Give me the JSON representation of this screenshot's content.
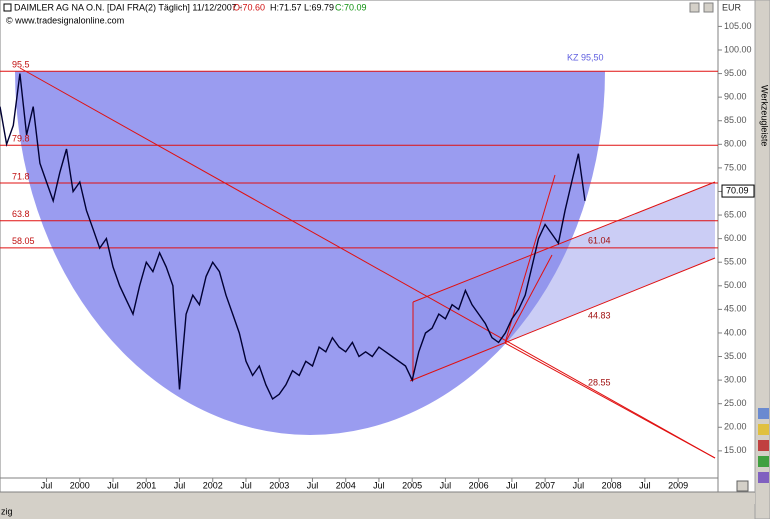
{
  "chart_data": {
    "type": "line",
    "title": "DAIMLER AG NA O.N. [DAI FRA(2)  Täglich] 11/12/2007 -",
    "quote_open": "O:70.60",
    "quote_high_low": "H:71.57 L:69.79",
    "quote_close": "C:70.09",
    "subtitle": "© www.tradesignalonline.com",
    "y_unit": "EUR",
    "last_price": 70.09,
    "annotation": "KZ 95,50",
    "levels": [
      95.5,
      79.8,
      71.8,
      63.8,
      58.05
    ],
    "level_color": "#e01010",
    "fib_labels": [
      61.04,
      44.83,
      28.55
    ],
    "toolbar_label": "Werkzeugleiste",
    "status_text": "zig",
    "xlim": [
      1998.8,
      2009.6
    ],
    "ylim": [
      6.7,
      110.6
    ],
    "yticks": [
      {
        "value": 15,
        "label": "15.00"
      },
      {
        "value": 20,
        "label": "20.00"
      },
      {
        "value": 25,
        "label": "25.00"
      },
      {
        "value": 30,
        "label": "30.00"
      },
      {
        "value": 35,
        "label": "35.00"
      },
      {
        "value": 40,
        "label": "40.00"
      },
      {
        "value": 45,
        "label": "45.00"
      },
      {
        "value": 50,
        "label": "50.00"
      },
      {
        "value": 55,
        "label": "55.00"
      },
      {
        "value": 60,
        "label": "60.00"
      },
      {
        "value": 65,
        "label": "65.00"
      },
      {
        "value": 70,
        "label": "70.00"
      },
      {
        "value": 75,
        "label": "75.00"
      },
      {
        "value": 80,
        "label": "80.00"
      },
      {
        "value": 85,
        "label": "85.00"
      },
      {
        "value": 90,
        "label": "90.00"
      },
      {
        "value": 95,
        "label": "95.00"
      },
      {
        "value": 100,
        "label": "100.00"
      },
      {
        "value": 105,
        "label": "105.00"
      }
    ],
    "xticks": [
      {
        "value": 1999.5,
        "label": "Jul"
      },
      2000,
      {
        "value": 2000.5,
        "label": "Jul"
      },
      2001,
      {
        "value": 2001.5,
        "label": "Jul"
      },
      2002,
      {
        "value": 2002.5,
        "label": "Jul"
      },
      2003,
      {
        "value": 2003.5,
        "label": "Jul"
      },
      2004,
      {
        "value": 2004.5,
        "label": "Jul"
      },
      2005,
      {
        "value": 2005.5,
        "label": "Jul"
      },
      2006,
      {
        "value": 2006.5,
        "label": "Jul"
      },
      2007,
      {
        "value": 2007.5,
        "label": "Jul"
      },
      2008,
      {
        "value": 2008.5,
        "label": "Jul"
      },
      2009
    ],
    "series": [
      {
        "name": "DAIMLER AG NA O.N.",
        "color": "#000033",
        "x": [
          1998.8,
          1998.9,
          1999.0,
          1999.1,
          1999.2,
          1999.3,
          1999.4,
          1999.5,
          1999.6,
          1999.7,
          1999.8,
          1999.9,
          2000.0,
          2000.1,
          2000.2,
          2000.3,
          2000.4,
          2000.5,
          2000.6,
          2000.7,
          2000.8,
          2000.9,
          2001.0,
          2001.1,
          2001.2,
          2001.3,
          2001.4,
          2001.5,
          2001.6,
          2001.7,
          2001.8,
          2001.9,
          2002.0,
          2002.1,
          2002.2,
          2002.3,
          2002.4,
          2002.5,
          2002.6,
          2002.7,
          2002.8,
          2002.9,
          2003.0,
          2003.1,
          2003.2,
          2003.3,
          2003.4,
          2003.5,
          2003.6,
          2003.7,
          2003.8,
          2003.9,
          2004.0,
          2004.1,
          2004.2,
          2004.3,
          2004.4,
          2004.5,
          2004.6,
          2004.7,
          2004.8,
          2004.9,
          2005.0,
          2005.1,
          2005.2,
          2005.3,
          2005.4,
          2005.5,
          2005.6,
          2005.7,
          2005.8,
          2005.9,
          2006.0,
          2006.1,
          2006.2,
          2006.3,
          2006.4,
          2006.5,
          2006.6,
          2006.7,
          2006.8,
          2006.9,
          2007.0,
          2007.1,
          2007.2,
          2007.3,
          2007.4,
          2007.5,
          2007.6
        ],
        "values": [
          88,
          80,
          84,
          95,
          82,
          88,
          76,
          72,
          68,
          74,
          79,
          70,
          72,
          66,
          62,
          58,
          60,
          54,
          50,
          47,
          44,
          50,
          55,
          53,
          57,
          54,
          50,
          28,
          44,
          48,
          46,
          52,
          55,
          53,
          48,
          44,
          40,
          34,
          31,
          33,
          29,
          26,
          27,
          29,
          32,
          31,
          34,
          33,
          37,
          36,
          39,
          37,
          36,
          38,
          35,
          36,
          35,
          37,
          36,
          35,
          34,
          33,
          30,
          36,
          40,
          41,
          44,
          43,
          46,
          45,
          49,
          46,
          44,
          42,
          39,
          38,
          40,
          43,
          45,
          48,
          54,
          60,
          63,
          61,
          59,
          66,
          72,
          78,
          68
        ]
      }
    ]
  }
}
